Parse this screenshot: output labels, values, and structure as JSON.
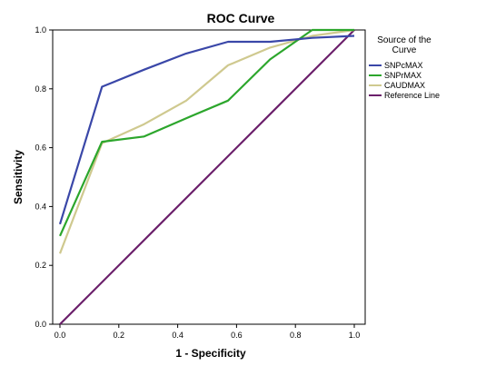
{
  "chart_data": {
    "type": "line",
    "title": "ROC Curve",
    "xlabel": "1 - Specificity",
    "ylabel": "Sensitivity",
    "xlim": [
      0,
      1
    ],
    "ylim": [
      0,
      1
    ],
    "x_ticks": [
      "0.0",
      "0.2",
      "0.4",
      "0.6",
      "0.8",
      "1.0"
    ],
    "y_ticks": [
      "0.0",
      "0.2",
      "0.4",
      "0.6",
      "0.8",
      "1.0"
    ],
    "grid": false,
    "legend": {
      "title_lines": [
        "Source of the",
        "Curve"
      ],
      "position": "right"
    },
    "series": [
      {
        "name": "SNPcMAX",
        "color": "#3a47a8",
        "points": [
          [
            0.0,
            0.34
          ],
          [
            0.143,
            0.807
          ],
          [
            0.286,
            0.865
          ],
          [
            0.429,
            0.92
          ],
          [
            0.571,
            0.96
          ],
          [
            0.714,
            0.96
          ],
          [
            0.857,
            0.973
          ],
          [
            1.0,
            0.98
          ]
        ]
      },
      {
        "name": "SNPrMAX",
        "color": "#2ca62c",
        "points": [
          [
            0.0,
            0.3
          ],
          [
            0.143,
            0.62
          ],
          [
            0.286,
            0.638
          ],
          [
            0.429,
            0.7
          ],
          [
            0.571,
            0.76
          ],
          [
            0.714,
            0.9
          ],
          [
            0.857,
            1.0
          ],
          [
            1.0,
            1.0
          ]
        ]
      },
      {
        "name": "CAUDMAX",
        "color": "#cfc98f",
        "points": [
          [
            0.0,
            0.24
          ],
          [
            0.143,
            0.615
          ],
          [
            0.286,
            0.68
          ],
          [
            0.429,
            0.76
          ],
          [
            0.571,
            0.88
          ],
          [
            0.714,
            0.94
          ],
          [
            0.857,
            0.98
          ],
          [
            1.0,
            1.0
          ]
        ]
      },
      {
        "name": "Reference Line",
        "color": "#6b1f6b",
        "points": [
          [
            0.0,
            0.0
          ],
          [
            1.0,
            1.0
          ]
        ]
      }
    ]
  }
}
